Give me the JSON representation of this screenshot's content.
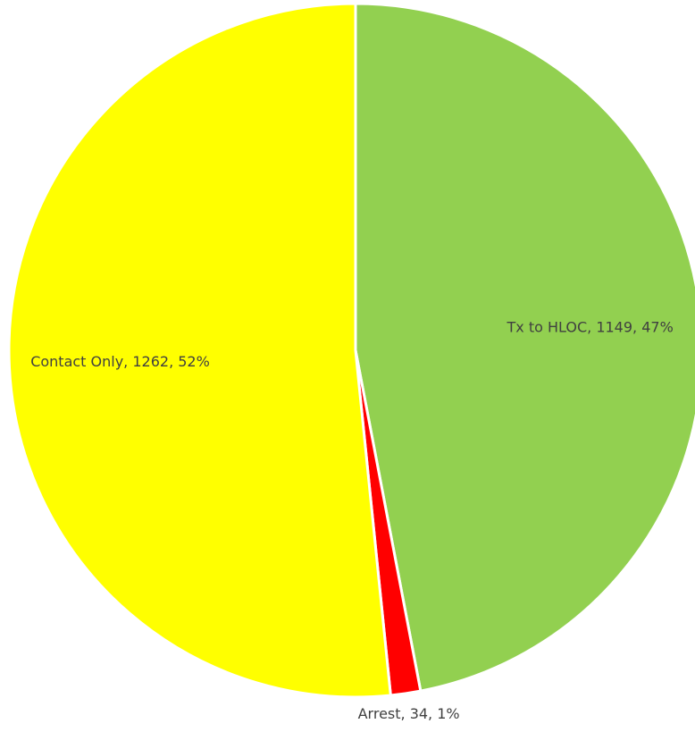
{
  "chart_data": {
    "type": "pie",
    "values": [
      1149,
      34,
      1262
    ],
    "value_labels": [
      "Tx to HLOC, 1149, 47%",
      "Arrest, 34, 1%",
      "Contact Only, 1262, 52%"
    ],
    "colors": [
      "#92d050",
      "#ff0000",
      "#ffff00"
    ]
  }
}
